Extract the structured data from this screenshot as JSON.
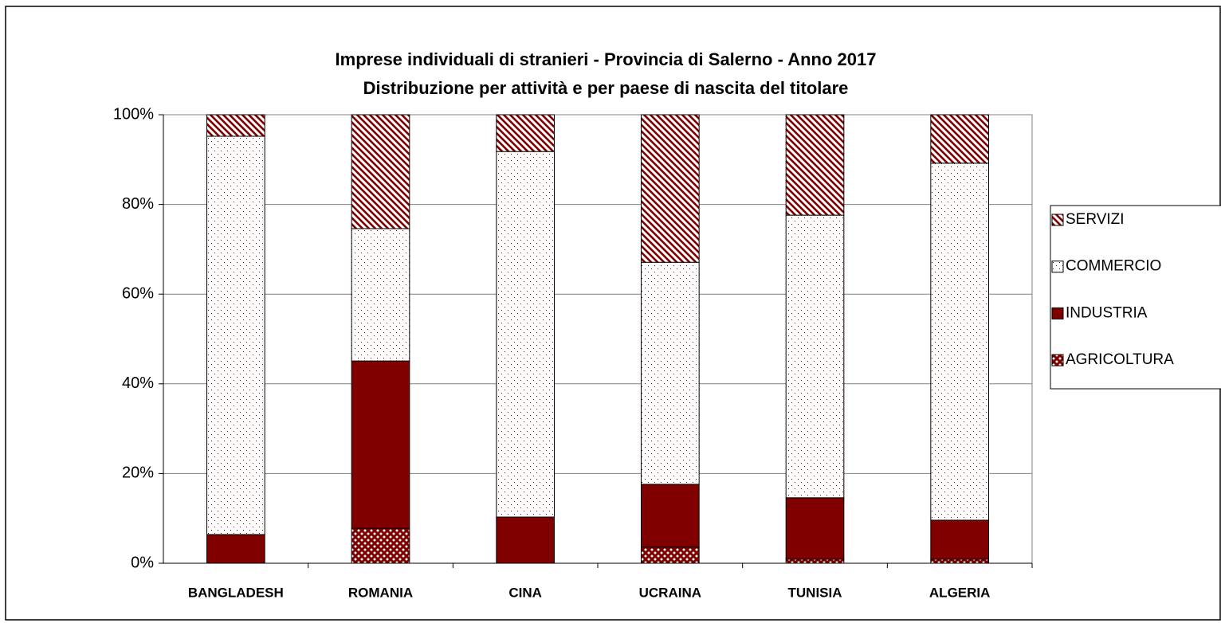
{
  "chart_data": {
    "type": "stacked_bar",
    "title": "Imprese individuali di stranieri - Provincia di Salerno - Anno 2017",
    "subtitle": "Distribuzione per attività e per paese di nascita del titolare",
    "categories": [
      "BANGLADESH",
      "ROMANIA",
      "CINA",
      "UCRAINA",
      "TUNISIA",
      "ALGERIA"
    ],
    "series": [
      {
        "name": "AGRICOLTURA",
        "color": "#800000",
        "pattern": "checker",
        "values": [
          0,
          7.8,
          0,
          3.6,
          0.9,
          0.9
        ]
      },
      {
        "name": "INDUSTRIA",
        "color": "#800000",
        "pattern": "solid",
        "values": [
          6.4,
          37.3,
          10.3,
          14.0,
          13.7,
          8.7
        ]
      },
      {
        "name": "COMMERCIO",
        "color": "#800000",
        "pattern": "dots",
        "values": [
          88.8,
          29.5,
          81.5,
          49.5,
          63.0,
          79.6
        ]
      },
      {
        "name": "SERVIZI",
        "color": "#800000",
        "pattern": "stripes",
        "values": [
          4.8,
          25.4,
          8.2,
          32.9,
          22.4,
          10.8
        ]
      }
    ],
    "ylim": [
      0,
      100
    ],
    "yticks": [
      {
        "value": 0,
        "label": "0%"
      },
      {
        "value": 20,
        "label": "20%"
      },
      {
        "value": 40,
        "label": "40%"
      },
      {
        "value": 60,
        "label": "60%"
      },
      {
        "value": 80,
        "label": "80%"
      },
      {
        "value": 100,
        "label": "100%"
      }
    ],
    "grid": true,
    "legend": "right"
  }
}
